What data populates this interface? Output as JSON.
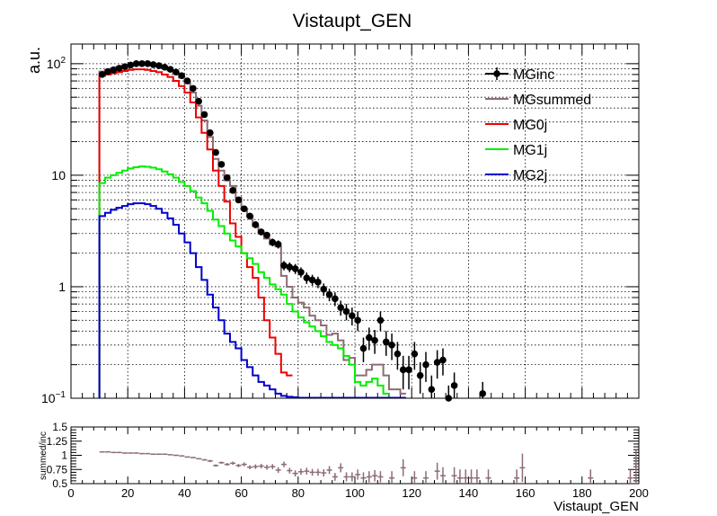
{
  "chart_data": [
    {
      "type": "line",
      "title": "Vistaupt_GEN",
      "ylabel": "a.u.",
      "xlabel": "",
      "xlim": [
        0,
        200
      ],
      "ylim": [
        0.1,
        150
      ],
      "yscale": "log",
      "grid": true,
      "legend_position": "top-right",
      "y_tick_labels": [
        {
          "value": 100,
          "base": "10",
          "exp": "2"
        },
        {
          "value": 10,
          "text": "10"
        },
        {
          "value": 1,
          "text": "1"
        },
        {
          "value": 0.1,
          "base": "10",
          "exp": "−1"
        }
      ],
      "series": [
        {
          "name": "MGinc",
          "style": "points",
          "color": "#000000",
          "x": [
            11,
            13,
            15,
            17,
            19,
            21,
            23,
            25,
            27,
            29,
            31,
            33,
            35,
            37,
            39,
            41,
            43,
            45,
            47,
            49,
            51,
            53,
            55,
            57,
            59,
            61,
            63,
            65,
            67,
            69,
            71,
            73,
            75,
            77,
            79,
            81,
            83,
            85,
            87,
            89,
            91,
            93,
            95,
            97,
            99,
            101,
            103,
            105,
            107,
            109,
            111,
            113,
            115,
            117,
            119,
            121,
            123,
            125,
            127,
            129,
            131,
            133,
            135,
            145
          ],
          "y": [
            80,
            85,
            88,
            91,
            94,
            97,
            100,
            100,
            100,
            98,
            96,
            93,
            89,
            84,
            78,
            70,
            60,
            46,
            35,
            24,
            16,
            12.5,
            9.5,
            7.3,
            6,
            5,
            4.3,
            3.6,
            3.1,
            2.9,
            2.5,
            2.4,
            1.55,
            1.5,
            1.45,
            1.35,
            1.2,
            1.15,
            1.1,
            0.95,
            0.85,
            0.78,
            0.65,
            0.6,
            0.55,
            0.5,
            0.28,
            0.35,
            0.33,
            0.5,
            0.32,
            0.3,
            0.25,
            0.18,
            0.18,
            0.25,
            0.16,
            0.2,
            0.12,
            0.21,
            0.22,
            0.1,
            0.13,
            0.11
          ],
          "err": [
            1.5,
            1.5,
            1.5,
            1.5,
            1.5,
            1.5,
            1.5,
            1.5,
            1.5,
            1.5,
            1.5,
            1.5,
            1.5,
            1.5,
            1.5,
            1.5,
            1.5,
            1,
            1,
            0.8,
            0.6,
            0.5,
            0.4,
            0.4,
            0.35,
            0.3,
            0.3,
            0.25,
            0.22,
            0.2,
            0.2,
            0.2,
            0.15,
            0.15,
            0.15,
            0.14,
            0.14,
            0.13,
            0.13,
            0.12,
            0.11,
            0.11,
            0.1,
            0.1,
            0.1,
            0.1,
            0.07,
            0.08,
            0.08,
            0.1,
            0.08,
            0.08,
            0.07,
            0.06,
            0.06,
            0.07,
            0.05,
            0.06,
            0.04,
            0.06,
            0.06,
            0.03,
            0.04,
            0.03
          ]
        },
        {
          "name": "MGsummed",
          "style": "step",
          "color": "#8c6d73",
          "edges": [
            10,
            12,
            14,
            16,
            18,
            20,
            22,
            24,
            26,
            28,
            30,
            32,
            34,
            36,
            38,
            40,
            42,
            44,
            46,
            48,
            50,
            52,
            54,
            56,
            58,
            60,
            62,
            64,
            66,
            68,
            70,
            72,
            74,
            76,
            78,
            80,
            82,
            84,
            86,
            88,
            90,
            92,
            94,
            96,
            98,
            100,
            102,
            104,
            106,
            108,
            110,
            112,
            114,
            116,
            118
          ],
          "y": [
            85,
            88,
            91,
            94,
            96,
            98,
            99,
            100,
            99,
            97,
            95,
            91,
            87,
            82,
            75,
            67,
            55,
            42,
            31,
            22,
            14,
            11,
            9,
            8,
            6.3,
            5,
            4.3,
            3.5,
            3,
            2.7,
            2.4,
            2.3,
            1.25,
            1,
            0.8,
            0.72,
            0.65,
            0.55,
            0.5,
            0.45,
            0.37,
            0.38,
            0.33,
            0.22,
            0.23,
            0.16,
            0.16,
            0.18,
            0.2,
            0.2,
            0.16,
            0.12,
            0.12,
            0.11
          ]
        },
        {
          "name": "MG0j",
          "style": "step",
          "color": "#ee0000",
          "edges": [
            10,
            12,
            14,
            16,
            18,
            20,
            22,
            24,
            26,
            28,
            30,
            32,
            34,
            36,
            38,
            40,
            42,
            44,
            46,
            48,
            50,
            52,
            54,
            56,
            58,
            60,
            62,
            64,
            66,
            68,
            70,
            72,
            74,
            76,
            78
          ],
          "y": [
            78,
            80,
            82,
            84,
            86,
            88,
            89,
            89,
            88,
            86,
            84,
            80,
            76,
            70,
            63,
            55,
            45,
            33,
            24,
            17,
            11,
            8,
            5.8,
            3.7,
            2.8,
            2,
            1.5,
            1.2,
            0.8,
            0.5,
            0.35,
            0.25,
            0.17,
            0.16
          ]
        },
        {
          "name": "MG1j",
          "style": "step",
          "color": "#00ee00",
          "edges": [
            10,
            12,
            14,
            16,
            18,
            20,
            22,
            24,
            26,
            28,
            30,
            32,
            34,
            36,
            38,
            40,
            42,
            44,
            46,
            48,
            50,
            52,
            54,
            56,
            58,
            60,
            62,
            64,
            66,
            68,
            70,
            72,
            74,
            76,
            78,
            80,
            82,
            84,
            86,
            88,
            90,
            92,
            94,
            96,
            98,
            100,
            102,
            104,
            106,
            108,
            110,
            112
          ],
          "y": [
            8.5,
            9.5,
            10,
            10.5,
            11,
            11.5,
            11.8,
            12,
            11.9,
            11.7,
            11.3,
            10.8,
            10.2,
            9.5,
            8.7,
            8,
            7.2,
            6.3,
            5.6,
            4.8,
            4,
            3.5,
            3,
            2.6,
            2.3,
            2,
            1.8,
            1.6,
            1.35,
            1.2,
            1.05,
            0.95,
            0.85,
            0.7,
            0.6,
            0.53,
            0.48,
            0.44,
            0.4,
            0.36,
            0.32,
            0.3,
            0.28,
            0.24,
            0.2,
            0.14,
            0.13,
            0.14,
            0.15,
            0.13,
            0.11
          ]
        },
        {
          "name": "MG2j",
          "style": "step",
          "color": "#0000cc",
          "edges": [
            10,
            12,
            14,
            16,
            18,
            20,
            22,
            24,
            26,
            28,
            30,
            32,
            34,
            36,
            38,
            40,
            42,
            44,
            46,
            48,
            50,
            52,
            54,
            56,
            58,
            60,
            62,
            64,
            66,
            68,
            70,
            72,
            74,
            76,
            78,
            80,
            82,
            84,
            86,
            88,
            90,
            92,
            94,
            96,
            98,
            100,
            102,
            104,
            106,
            108,
            110,
            112,
            114,
            116,
            118
          ],
          "y": [
            4.3,
            4.6,
            4.9,
            5.1,
            5.3,
            5.5,
            5.6,
            5.6,
            5.5,
            5.3,
            5,
            4.6,
            4.1,
            3.6,
            3,
            2.5,
            2,
            1.5,
            1.15,
            0.85,
            0.65,
            0.5,
            0.38,
            0.32,
            0.28,
            0.22,
            0.19,
            0.16,
            0.14,
            0.13,
            0.12,
            0.11,
            0.105,
            0.103,
            0.102,
            0.101,
            0.101,
            0.101,
            0.101,
            0.101,
            0.101,
            0.101,
            0.101,
            0.101,
            0.101,
            0.101,
            0.101,
            0.101,
            0.101,
            0.101,
            0.101,
            0.101,
            0.101,
            0.101
          ]
        }
      ]
    },
    {
      "type": "scatter",
      "ylabel": "summed/inc",
      "xlabel": "Vistaupt_GEN",
      "xlim": [
        0,
        200
      ],
      "ylim": [
        0.5,
        1.5
      ],
      "grid": false,
      "x_ticks": [
        0,
        20,
        40,
        60,
        80,
        100,
        120,
        140,
        160,
        180,
        200
      ],
      "y_ticks": [
        "0.5",
        "0.75",
        "1",
        "1.25",
        "1.5"
      ],
      "color": "#8c6d73",
      "x": [
        11,
        13,
        15,
        17,
        19,
        21,
        23,
        25,
        27,
        29,
        31,
        33,
        35,
        37,
        39,
        41,
        43,
        45,
        47,
        49,
        51,
        53,
        55,
        57,
        59,
        61,
        63,
        65,
        67,
        69,
        71,
        73,
        75,
        77,
        79,
        81,
        83,
        85,
        87,
        89,
        91,
        93,
        95,
        97,
        99,
        101,
        103,
        105,
        107,
        109,
        111,
        113,
        115,
        117,
        119,
        121,
        123,
        125,
        127,
        129,
        131,
        133,
        135,
        137,
        139,
        141,
        143,
        145,
        147,
        149,
        151,
        153,
        155,
        157,
        159,
        161,
        163,
        165,
        167,
        169,
        171,
        173,
        175,
        177,
        179,
        181,
        183,
        185,
        187,
        189,
        191,
        193,
        195,
        197,
        199
      ],
      "y": [
        1.06,
        1.06,
        1.05,
        1.05,
        1.04,
        1.04,
        1.04,
        1.03,
        1.03,
        1.02,
        1.02,
        1.02,
        1.01,
        1.0,
        0.99,
        0.97,
        0.96,
        0.94,
        0.92,
        0.9,
        0.82,
        0.87,
        0.84,
        0.86,
        0.82,
        0.84,
        0.79,
        0.8,
        0.81,
        0.79,
        0.8,
        0.74,
        0.84,
        0.73,
        0.68,
        0.71,
        0.72,
        0.7,
        0.7,
        0.69,
        0.74,
        0.62,
        0.78,
        0.62,
        0.62,
        0.66,
        0.6,
        0.62,
        0.64,
        0.62,
        0.62,
        0.6,
        0.6,
        0.78,
        0.6,
        0.6,
        0.6,
        0.6,
        0.68,
        0.72,
        0.64,
        0.68,
        0.64,
        0.6,
        0.6,
        0.6,
        0.6,
        0.6,
        0.6,
        0.6,
        0.6,
        0.6,
        0.6,
        0.6,
        0.78,
        0.6,
        0.6,
        0.6,
        0.6,
        0.6,
        0.6,
        0.6,
        0.6,
        0.6,
        0.6,
        0.6,
        0.6,
        0.6,
        0.6,
        0.6,
        0.6,
        0.6,
        0.8,
        0.6,
        0.8
      ],
      "err": [
        0.01,
        0.01,
        0.01,
        0.01,
        0.01,
        0.01,
        0.01,
        0.01,
        0.01,
        0.01,
        0.01,
        0.01,
        0.01,
        0.01,
        0.01,
        0.01,
        0.01,
        0.01,
        0.015,
        0.02,
        0.02,
        0.02,
        0.025,
        0.03,
        0.03,
        0.035,
        0.035,
        0.04,
        0.04,
        0.045,
        0.045,
        0.05,
        0.05,
        0.05,
        0.055,
        0.055,
        0.06,
        0.06,
        0.06,
        0.065,
        0.07,
        0.07,
        0.08,
        0.08,
        0.08,
        0.09,
        0.1,
        0.1,
        0.1,
        0.1,
        0.12,
        0.12,
        0.12,
        0.15,
        0.12,
        0.12,
        0.12,
        0.12,
        0.15,
        0.15,
        0.15,
        0.15,
        0.15,
        0.15,
        0.15,
        0.15,
        0.15,
        0.15,
        0.15,
        0.15,
        0.15,
        0.15,
        0.15,
        0.15,
        0.25,
        0.15,
        0.15,
        0.15,
        0.15,
        0.15,
        0.15,
        0.15,
        0.15,
        0.15,
        0.15,
        0.15,
        0.15,
        0.15,
        0.15,
        0.15,
        0.15,
        0.15,
        0.3,
        0.15,
        0.3
      ],
      "sparse": true
    }
  ]
}
